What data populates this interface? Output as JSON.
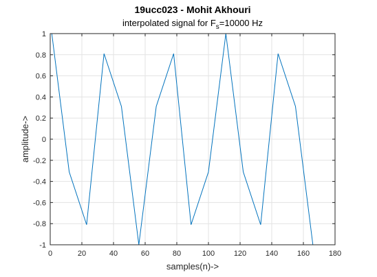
{
  "chart_data": {
    "type": "line",
    "title": "19ucc023 - Mohit Akhouri",
    "subtitle": {
      "prefix": "interpolated signal for F",
      "subscript": "s",
      "suffix": "=10000 Hz"
    },
    "xlabel": "samples(n)->",
    "ylabel": "amplitude->",
    "xlim": [
      0,
      180
    ],
    "ylim": [
      -1,
      1
    ],
    "xticks": [
      "0",
      "20",
      "40",
      "60",
      "80",
      "100",
      "120",
      "140",
      "160",
      "180"
    ],
    "yticks": [
      "1",
      "0.8",
      "0.6",
      "0.4",
      "0.2",
      "0",
      "-0.2",
      "-0.4",
      "-0.6",
      "-0.8",
      "-1"
    ],
    "grid": true,
    "series": [
      {
        "color": "#0072bd",
        "x": [
          1,
          12,
          23,
          34,
          45,
          56,
          67,
          78,
          89,
          100,
          111,
          122,
          133,
          144,
          155,
          166
        ],
        "y": [
          1.0,
          -0.31,
          -0.81,
          0.81,
          0.31,
          -1.0,
          0.31,
          0.81,
          -0.81,
          -0.31,
          1.0,
          -0.31,
          -0.81,
          0.81,
          0.31,
          -1.0
        ]
      }
    ]
  }
}
